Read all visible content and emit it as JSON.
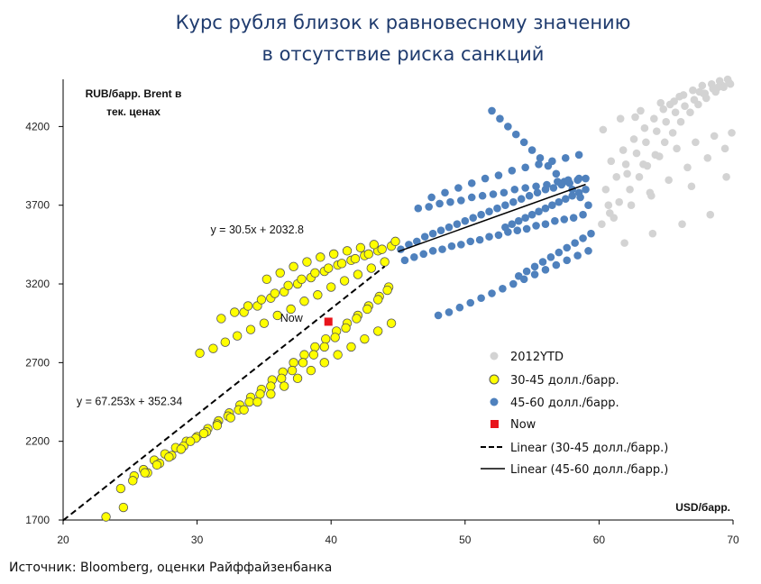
{
  "title_lines": [
    "Курс рубля близок к равновесному значению",
    "в отсутствие риска санкций"
  ],
  "source": "Источник: Bloomberg, оценки Райффайзенбанка",
  "colors": {
    "grey": "#d3d3d3",
    "yellow": "#ffff00",
    "yellow_edge": "#555555",
    "blue": "#4f81bd",
    "now": "#e8141b",
    "title": "#1f3b6e"
  },
  "chart_data": {
    "type": "scatter",
    "title": "Курс рубля близок к равновесному значению в отсутствие риска санкций",
    "ylabel_lines": [
      "RUB/барр. Brent в",
      "тек. ценах"
    ],
    "xlabel": "USD/барр.",
    "xlim": [
      20,
      70
    ],
    "ylim": [
      1700,
      4500
    ],
    "xticks": [
      "20",
      "30",
      "40",
      "50",
      "60",
      "70"
    ],
    "yticks": [
      "1700",
      "2200",
      "2700",
      "3200",
      "3700",
      "4200"
    ],
    "grid": false,
    "legend_position": "right",
    "series": [
      {
        "name": "2012YTD",
        "marker": "grey-dot",
        "x": [
          60.2,
          60.8,
          61.5,
          62.3,
          63.0,
          63.6,
          64.2,
          64.9,
          65.5,
          66.1,
          66.8,
          67.4,
          68.0,
          68.7,
          69.3,
          69.8,
          60.5,
          61.3,
          62.0,
          62.8,
          63.5,
          64.3,
          65.0,
          65.7,
          66.4,
          67.1,
          67.8,
          68.5,
          69.2,
          69.7,
          60.9,
          61.8,
          62.6,
          63.4,
          64.1,
          64.8,
          65.6,
          66.3,
          67.0,
          67.7,
          68.4,
          69.0,
          69.6,
          61.1,
          62.4,
          63.8,
          65.2,
          66.6,
          68.1,
          69.4,
          60.3,
          61.6,
          63.1,
          64.6,
          66.0,
          67.5,
          68.9,
          62.1,
          63.3,
          64.5,
          65.8,
          67.2,
          68.6,
          69.9,
          61.9,
          64.0,
          66.2,
          68.3,
          62.7,
          65.3,
          67.9,
          60.7,
          63.9,
          66.9,
          69.5
        ],
        "y": [
          3580,
          3650,
          3720,
          3800,
          3880,
          3950,
          4020,
          4100,
          4160,
          4230,
          4290,
          4340,
          4380,
          4420,
          4450,
          4470,
          3800,
          3880,
          3960,
          4030,
          4100,
          4170,
          4230,
          4290,
          4330,
          4370,
          4410,
          4440,
          4460,
          4480,
          3980,
          4050,
          4120,
          4190,
          4250,
          4310,
          4360,
          4400,
          4430,
          4460,
          4470,
          4490,
          4500,
          3620,
          3700,
          3780,
          3860,
          3940,
          4000,
          4060,
          4180,
          4250,
          4300,
          4350,
          4390,
          4420,
          4450,
          3900,
          3960,
          4010,
          4060,
          4100,
          4140,
          4160,
          3460,
          3520,
          3580,
          3640,
          4260,
          4340,
          4410,
          3700,
          3760,
          3820,
          3880
        ]
      },
      {
        "name": "30-45 долл./барр.",
        "marker": "yellow-circle",
        "x": [
          23.2,
          24.5,
          25.3,
          26.0,
          26.8,
          27.6,
          28.4,
          29.2,
          30.0,
          30.8,
          31.6,
          32.4,
          33.2,
          34.0,
          34.8,
          35.6,
          36.4,
          37.2,
          38.0,
          38.8,
          39.6,
          40.4,
          41.2,
          42.0,
          42.8,
          43.6,
          44.3,
          26.3,
          27.2,
          28.1,
          29.0,
          29.9,
          30.7,
          31.5,
          32.3,
          33.1,
          33.9,
          34.7,
          35.5,
          36.3,
          37.1,
          37.9,
          38.7,
          39.5,
          40.3,
          41.1,
          41.9,
          42.7,
          43.5,
          44.2,
          30.2,
          31.2,
          32.1,
          33.0,
          34.0,
          35.0,
          36.0,
          37.0,
          38.0,
          39.0,
          40.0,
          41.0,
          42.0,
          43.0,
          44.0,
          33.5,
          34.5,
          35.5,
          36.5,
          37.5,
          38.5,
          39.5,
          40.5,
          41.5,
          42.5,
          43.5,
          44.5,
          35.2,
          36.2,
          37.2,
          38.2,
          39.2,
          40.2,
          41.2,
          42.2,
          43.2,
          31.8,
          32.8,
          33.8,
          34.8,
          35.8,
          36.8,
          37.8,
          38.8,
          39.8,
          40.8,
          41.8,
          42.8,
          43.8,
          44.8,
          29.5,
          30.5,
          31.5,
          32.5,
          33.5,
          34.5,
          35.5,
          36.5,
          37.5,
          38.5,
          39.5,
          40.5,
          41.5,
          42.5,
          43.5,
          44.5,
          28.8,
          27.9,
          27.0,
          26.1,
          25.2,
          24.3
        ],
        "y": [
          1720,
          1780,
          1980,
          2020,
          2080,
          2120,
          2160,
          2200,
          2230,
          2280,
          2330,
          2380,
          2430,
          2480,
          2530,
          2590,
          2640,
          2700,
          2750,
          2800,
          2850,
          2900,
          2950,
          3000,
          3060,
          3120,
          3180,
          2000,
          2060,
          2110,
          2170,
          2220,
          2260,
          2310,
          2360,
          2400,
          2450,
          2500,
          2550,
          2600,
          2650,
          2700,
          2750,
          2800,
          2860,
          2920,
          2980,
          3040,
          3100,
          3160,
          2760,
          2790,
          2830,
          2870,
          2910,
          2950,
          3000,
          3040,
          3090,
          3130,
          3180,
          3220,
          3260,
          3300,
          3340,
          3020,
          3060,
          3110,
          3150,
          3200,
          3240,
          3280,
          3320,
          3350,
          3380,
          3410,
          3440,
          3230,
          3270,
          3310,
          3340,
          3370,
          3390,
          3410,
          3430,
          3450,
          2980,
          3020,
          3060,
          3100,
          3140,
          3190,
          3230,
          3270,
          3300,
          3330,
          3360,
          3390,
          3420,
          3470,
          2200,
          2250,
          2300,
          2350,
          2400,
          2450,
          2500,
          2550,
          2600,
          2650,
          2700,
          2750,
          2800,
          2850,
          2900,
          2950,
          2150,
          2100,
          2050,
          2000,
          1950,
          1900
        ]
      },
      {
        "name": "45-60 долл./барр.",
        "marker": "blue-dot",
        "x": [
          45.2,
          45.8,
          46.4,
          47.0,
          47.6,
          48.2,
          48.8,
          49.4,
          50.0,
          50.6,
          51.2,
          51.8,
          52.4,
          53.0,
          53.6,
          54.2,
          54.8,
          55.4,
          56.0,
          56.6,
          57.2,
          57.8,
          58.4,
          59.0,
          45.5,
          46.2,
          46.9,
          47.6,
          48.3,
          49.0,
          49.7,
          50.4,
          51.1,
          51.8,
          52.5,
          53.2,
          53.9,
          54.6,
          55.3,
          56.0,
          56.7,
          57.4,
          58.1,
          58.8,
          48.0,
          48.8,
          49.6,
          50.4,
          51.2,
          52.0,
          52.8,
          53.6,
          54.4,
          55.2,
          56.0,
          56.8,
          57.6,
          58.4,
          59.2,
          52.0,
          52.6,
          53.2,
          53.8,
          54.4,
          55.0,
          55.6,
          56.2,
          56.8,
          57.4,
          58.0,
          58.6,
          59.2,
          47.5,
          48.5,
          49.5,
          50.5,
          51.5,
          52.5,
          53.5,
          54.5,
          55.5,
          56.5,
          57.5,
          58.5,
          54.0,
          54.6,
          55.2,
          55.8,
          56.4,
          57.0,
          57.6,
          58.2,
          58.8,
          59.4,
          53.0,
          53.5,
          54.0,
          54.5,
          55.0,
          55.5,
          56.0,
          56.5,
          57.0,
          57.5,
          58.0,
          58.5,
          59.0,
          46.5,
          47.3,
          48.1,
          48.9,
          49.7,
          50.5,
          51.3,
          52.1,
          52.9,
          53.7,
          54.5,
          55.3,
          56.1,
          56.9,
          57.7,
          58.5
        ],
        "y": [
          3420,
          3450,
          3470,
          3500,
          3520,
          3540,
          3560,
          3580,
          3600,
          3620,
          3640,
          3660,
          3680,
          3700,
          3720,
          3740,
          3760,
          3780,
          3800,
          3810,
          3830,
          3840,
          3860,
          3870,
          3350,
          3370,
          3390,
          3410,
          3420,
          3440,
          3450,
          3470,
          3480,
          3500,
          3510,
          3530,
          3540,
          3550,
          3570,
          3580,
          3600,
          3610,
          3620,
          3640,
          3000,
          3020,
          3050,
          3080,
          3110,
          3140,
          3170,
          3200,
          3230,
          3260,
          3290,
          3320,
          3350,
          3380,
          3410,
          4300,
          4250,
          4200,
          4150,
          4100,
          4050,
          4000,
          3950,
          3900,
          3850,
          3800,
          3750,
          3700,
          3750,
          3780,
          3810,
          3840,
          3870,
          3890,
          3920,
          3940,
          3960,
          3980,
          4000,
          4020,
          3250,
          3280,
          3310,
          3340,
          3370,
          3400,
          3430,
          3460,
          3490,
          3520,
          3560,
          3580,
          3600,
          3620,
          3640,
          3660,
          3680,
          3700,
          3720,
          3740,
          3760,
          3780,
          3800,
          3680,
          3690,
          3710,
          3720,
          3730,
          3750,
          3760,
          3770,
          3780,
          3800,
          3810,
          3820,
          3830,
          3850,
          3860,
          3870
        ]
      },
      {
        "name": "Now",
        "marker": "red-square",
        "x": [
          39.8
        ],
        "y": [
          2960
        ]
      }
    ],
    "trendlines": [
      {
        "name": "Linear (30-45 долл./барр.)",
        "slope": 67.253,
        "intercept": 352.34,
        "x_range": [
          20,
          44
        ],
        "style": "dashed"
      },
      {
        "name": "Linear (45-60 долл./барр.)",
        "slope": 30.5,
        "intercept": 2032.8,
        "x_range": [
          45,
          59
        ],
        "style": "solid"
      }
    ],
    "annotations": [
      {
        "text": "y = 30.5x + 2032.8",
        "x": 31,
        "y": 3520
      },
      {
        "text": "y = 67.253x + 352.34",
        "x": 21,
        "y": 2430
      },
      {
        "text": "Now",
        "x": 36.2,
        "y": 2960
      }
    ],
    "legend": [
      {
        "label": "2012YTD",
        "marker": "grey-dot"
      },
      {
        "label": "30-45 долл./барр.",
        "marker": "yellow-circle"
      },
      {
        "label": "45-60 долл./барр.",
        "marker": "blue-dot"
      },
      {
        "label": "Now",
        "marker": "red-square"
      },
      {
        "label": "Linear (30-45 долл./барр.)",
        "marker": "dashed-line"
      },
      {
        "label": "Linear (45-60 долл./барр.)",
        "marker": "solid-line"
      }
    ]
  }
}
